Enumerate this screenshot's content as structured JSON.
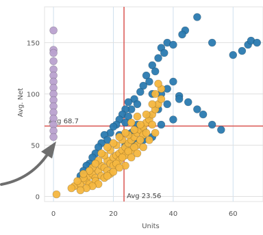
{
  "chart_data": {
    "type": "scatter",
    "xlabel": "Units",
    "ylabel": "Avg. Net",
    "xlim": [
      -3,
      70
    ],
    "ylim": [
      -5,
      185
    ],
    "x_ticks": [
      0,
      20,
      40,
      60
    ],
    "y_ticks": [
      0,
      50,
      100,
      150
    ],
    "grid": true,
    "colors": {
      "blue": "#2a7ab0",
      "orange": "#f4b63f",
      "purple": "#b9a1cf",
      "ref_line": "#d9534f",
      "arrow": "#6e6e6e"
    },
    "reference_lines": [
      {
        "axis": "x",
        "value": 23.56,
        "label": "Avg 23.56"
      },
      {
        "axis": "y",
        "value": 68.7,
        "label": "Avg 68.7"
      }
    ],
    "series": [
      {
        "color": "#b9a1cf",
        "points": [
          [
            0,
            162
          ],
          [
            0,
            143
          ],
          [
            0,
            140
          ],
          [
            0,
            132
          ],
          [
            0,
            124
          ],
          [
            0,
            118
          ],
          [
            0,
            112
          ],
          [
            0,
            106
          ],
          [
            0,
            100
          ],
          [
            0,
            94
          ],
          [
            0,
            88
          ],
          [
            0,
            82
          ],
          [
            0,
            76
          ],
          [
            0,
            70
          ],
          [
            0,
            64
          ],
          [
            0,
            58
          ]
        ]
      },
      {
        "color": "#2a7ab0",
        "points": [
          [
            48,
            175
          ],
          [
            44,
            162
          ],
          [
            43,
            158
          ],
          [
            38,
            150
          ],
          [
            40,
            148
          ],
          [
            36,
            145
          ],
          [
            37,
            140
          ],
          [
            35,
            135
          ],
          [
            33,
            128
          ],
          [
            34,
            122
          ],
          [
            31,
            118
          ],
          [
            32,
            112
          ],
          [
            30,
            108
          ],
          [
            40,
            112
          ],
          [
            42,
            98
          ],
          [
            38,
            105
          ],
          [
            36,
            100
          ],
          [
            33,
            100
          ],
          [
            29,
            102
          ],
          [
            27,
            95
          ],
          [
            28,
            90
          ],
          [
            25,
            92
          ],
          [
            26,
            85
          ],
          [
            24,
            85
          ],
          [
            23,
            80
          ],
          [
            25,
            78
          ],
          [
            22,
            75
          ],
          [
            24,
            72
          ],
          [
            21,
            70
          ],
          [
            20,
            68
          ],
          [
            19,
            62
          ],
          [
            17,
            60
          ],
          [
            18,
            55
          ],
          [
            16,
            52
          ],
          [
            15,
            48
          ],
          [
            14,
            42
          ],
          [
            13,
            38
          ],
          [
            12,
            32
          ],
          [
            11,
            30
          ],
          [
            10,
            25
          ],
          [
            9,
            20
          ],
          [
            22,
            60
          ],
          [
            26,
            62
          ],
          [
            30,
            65
          ],
          [
            28,
            70
          ],
          [
            32,
            78
          ],
          [
            35,
            85
          ],
          [
            38,
            90
          ],
          [
            42,
            95
          ],
          [
            45,
            92
          ],
          [
            48,
            85
          ],
          [
            50,
            80
          ],
          [
            53,
            70
          ],
          [
            56,
            65
          ],
          [
            40,
            75
          ],
          [
            36,
            70
          ],
          [
            33,
            58
          ],
          [
            30,
            55
          ],
          [
            27,
            52
          ],
          [
            24,
            50
          ],
          [
            53,
            150
          ],
          [
            60,
            138
          ],
          [
            63,
            142
          ],
          [
            65,
            148
          ],
          [
            66,
            152
          ],
          [
            68,
            150
          ]
        ]
      },
      {
        "color": "#f4b63f",
        "points": [
          [
            1,
            2
          ],
          [
            7,
            10
          ],
          [
            9,
            12
          ],
          [
            11,
            15
          ],
          [
            12,
            20
          ],
          [
            13,
            22
          ],
          [
            14,
            18
          ],
          [
            15,
            25
          ],
          [
            16,
            30
          ],
          [
            17,
            28
          ],
          [
            18,
            35
          ],
          [
            19,
            32
          ],
          [
            20,
            38
          ],
          [
            21,
            40
          ],
          [
            22,
            42
          ],
          [
            23,
            45
          ],
          [
            24,
            48
          ],
          [
            25,
            52
          ],
          [
            26,
            55
          ],
          [
            27,
            58
          ],
          [
            28,
            62
          ],
          [
            29,
            65
          ],
          [
            30,
            68
          ],
          [
            31,
            72
          ],
          [
            32,
            75
          ],
          [
            33,
            80
          ],
          [
            34,
            85
          ],
          [
            35,
            90
          ],
          [
            36,
            95
          ],
          [
            36,
            105
          ],
          [
            35,
            110
          ],
          [
            30,
            60
          ],
          [
            28,
            50
          ],
          [
            26,
            45
          ],
          [
            24,
            40
          ],
          [
            22,
            35
          ],
          [
            20,
            30
          ],
          [
            18,
            25
          ],
          [
            16,
            20
          ],
          [
            14,
            15
          ],
          [
            12,
            12
          ],
          [
            10,
            18
          ],
          [
            13,
            28
          ],
          [
            15,
            35
          ],
          [
            17,
            40
          ],
          [
            19,
            45
          ],
          [
            21,
            50
          ],
          [
            23,
            55
          ],
          [
            25,
            60
          ],
          [
            27,
            65
          ],
          [
            29,
            70
          ],
          [
            31,
            80
          ],
          [
            33,
            90
          ],
          [
            34,
            100
          ],
          [
            28,
            78
          ],
          [
            26,
            72
          ],
          [
            24,
            62
          ],
          [
            22,
            58
          ],
          [
            20,
            52
          ],
          [
            18,
            48
          ],
          [
            16,
            42
          ],
          [
            14,
            32
          ],
          [
            12,
            25
          ],
          [
            10,
            22
          ],
          [
            8,
            15
          ],
          [
            6,
            8
          ],
          [
            21,
            32
          ],
          [
            23,
            38
          ],
          [
            25,
            44
          ],
          [
            27,
            48
          ],
          [
            29,
            55
          ],
          [
            31,
            62
          ],
          [
            33,
            70
          ],
          [
            19,
            22
          ],
          [
            17,
            18
          ],
          [
            15,
            12
          ],
          [
            13,
            10
          ],
          [
            11,
            8
          ],
          [
            9,
            6
          ],
          [
            24,
            30
          ],
          [
            26,
            38
          ],
          [
            28,
            42
          ],
          [
            30,
            48
          ],
          [
            32,
            55
          ],
          [
            34,
            62
          ],
          [
            22,
            28
          ],
          [
            20,
            24
          ],
          [
            18,
            20
          ]
        ]
      }
    ]
  }
}
